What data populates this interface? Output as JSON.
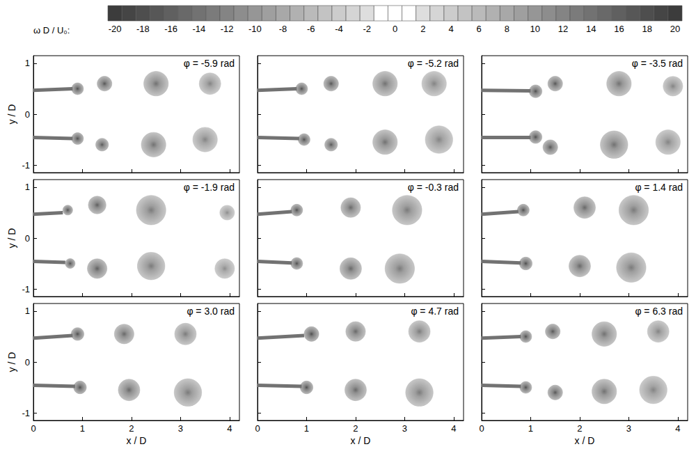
{
  "colorbar": {
    "label": "ω D / U₀:",
    "range": [
      -20.5,
      20.5
    ],
    "ticks": [
      -20,
      -18,
      -16,
      -14,
      -12,
      -10,
      -8,
      -6,
      -4,
      -2,
      0,
      2,
      4,
      6,
      8,
      10,
      12,
      14,
      16,
      18,
      20
    ]
  },
  "chart_data": [
    {
      "type": "scatter",
      "title": "φ = -5.9 rad",
      "xlim": [
        0,
        4.2
      ],
      "ylim": [
        -1.15,
        1.15
      ],
      "xticks": [
        0,
        1,
        2,
        3,
        4
      ],
      "yticks": [
        -1,
        0,
        1
      ],
      "tick_labels": "y",
      "ylabel": "y / D",
      "series": [
        {
          "type": "line",
          "x": [
            0,
            0.8
          ],
          "y": [
            0.47,
            0.5
          ],
          "vorticity": -14
        },
        {
          "type": "line",
          "x": [
            0,
            0.8
          ],
          "y": [
            -0.46,
            -0.48
          ],
          "vorticity": 14
        },
        {
          "type": "scatter",
          "x": [
            0.9,
            1.45,
            2.5,
            3.6,
            0.9,
            1.4,
            2.45,
            3.5
          ],
          "y": [
            0.5,
            0.6,
            0.6,
            0.6,
            -0.48,
            -0.6,
            -0.6,
            -0.5
          ],
          "size": [
            0.12,
            0.15,
            0.25,
            0.22,
            0.12,
            0.13,
            0.25,
            0.25
          ],
          "vorticity": [
            -18,
            -17,
            -14,
            -12,
            18,
            17,
            14,
            12
          ]
        }
      ]
    },
    {
      "type": "scatter",
      "title": "φ = -5.2 rad",
      "xlim": [
        0,
        4.2
      ],
      "ylim": [
        -1.15,
        1.15
      ],
      "xticks": [
        0,
        1,
        2,
        3,
        4
      ],
      "yticks": [
        -1,
        0,
        1
      ],
      "tick_labels": false,
      "series": [
        {
          "type": "line",
          "x": [
            0,
            0.8
          ],
          "y": [
            0.47,
            0.5
          ],
          "vorticity": -14
        },
        {
          "type": "line",
          "x": [
            0,
            0.85
          ],
          "y": [
            -0.46,
            -0.48
          ],
          "vorticity": 14
        },
        {
          "type": "scatter",
          "x": [
            0.9,
            1.5,
            2.6,
            3.6,
            0.95,
            1.5,
            2.6,
            3.7
          ],
          "y": [
            0.5,
            0.6,
            0.6,
            0.6,
            -0.5,
            -0.6,
            -0.55,
            -0.5
          ],
          "size": [
            0.12,
            0.15,
            0.25,
            0.25,
            0.12,
            0.13,
            0.25,
            0.28
          ],
          "vorticity": [
            -18,
            -17,
            -14,
            -12,
            18,
            17,
            14,
            12
          ]
        }
      ]
    },
    {
      "type": "scatter",
      "title": "φ = -3.5 rad",
      "xlim": [
        0,
        4.2
      ],
      "ylim": [
        -1.15,
        1.15
      ],
      "xticks": [
        0,
        1,
        2,
        3,
        4
      ],
      "yticks": [
        -1,
        0,
        1
      ],
      "tick_labels": false,
      "series": [
        {
          "type": "line",
          "x": [
            0,
            1.0
          ],
          "y": [
            0.47,
            0.46
          ],
          "vorticity": -14
        },
        {
          "type": "line",
          "x": [
            0,
            1.0
          ],
          "y": [
            -0.46,
            -0.46
          ],
          "vorticity": 14
        },
        {
          "type": "scatter",
          "x": [
            1.1,
            1.5,
            2.8,
            3.9,
            1.1,
            1.4,
            2.7,
            3.8
          ],
          "y": [
            0.45,
            0.6,
            0.6,
            0.55,
            -0.45,
            -0.65,
            -0.6,
            -0.55
          ],
          "size": [
            0.13,
            0.15,
            0.25,
            0.2,
            0.13,
            0.15,
            0.28,
            0.25
          ],
          "vorticity": [
            -18,
            -17,
            -14,
            -12,
            18,
            17,
            14,
            12
          ]
        }
      ]
    },
    {
      "type": "scatter",
      "title": "φ = -1.9 rad",
      "xlim": [
        0,
        4.2
      ],
      "ylim": [
        -1.15,
        1.15
      ],
      "xticks": [
        0,
        1,
        2,
        3,
        4
      ],
      "yticks": [
        -1,
        0,
        1
      ],
      "tick_labels": "y",
      "ylabel": "y / D",
      "series": [
        {
          "type": "line",
          "x": [
            0,
            0.6
          ],
          "y": [
            0.47,
            0.5
          ],
          "vorticity": -14
        },
        {
          "type": "line",
          "x": [
            0,
            0.65
          ],
          "y": [
            -0.46,
            -0.48
          ],
          "vorticity": 14
        },
        {
          "type": "scatter",
          "x": [
            0.7,
            1.3,
            2.4,
            3.95,
            0.75,
            1.3,
            2.4,
            3.9
          ],
          "y": [
            0.55,
            0.65,
            0.55,
            0.5,
            -0.5,
            -0.6,
            -0.55,
            -0.6
          ],
          "size": [
            0.1,
            0.18,
            0.3,
            0.15,
            0.1,
            0.2,
            0.28,
            0.2
          ],
          "vorticity": [
            -18,
            -16,
            -13,
            -11,
            18,
            16,
            13,
            11
          ]
        }
      ]
    },
    {
      "type": "scatter",
      "title": "φ = -0.3 rad",
      "xlim": [
        0,
        4.2
      ],
      "ylim": [
        -1.15,
        1.15
      ],
      "xticks": [
        0,
        1,
        2,
        3,
        4
      ],
      "yticks": [
        -1,
        0,
        1
      ],
      "tick_labels": false,
      "series": [
        {
          "type": "line",
          "x": [
            0,
            0.7
          ],
          "y": [
            0.47,
            0.52
          ],
          "vorticity": -14
        },
        {
          "type": "line",
          "x": [
            0,
            0.7
          ],
          "y": [
            -0.46,
            -0.49
          ],
          "vorticity": 14
        },
        {
          "type": "scatter",
          "x": [
            0.8,
            1.9,
            3.05,
            0.8,
            1.9,
            2.9
          ],
          "y": [
            0.55,
            0.6,
            0.55,
            -0.5,
            -0.6,
            -0.6
          ],
          "size": [
            0.12,
            0.2,
            0.3,
            0.12,
            0.22,
            0.3
          ],
          "vorticity": [
            -18,
            -15,
            -13,
            18,
            15,
            13
          ]
        }
      ]
    },
    {
      "type": "scatter",
      "title": "φ = 1.4 rad",
      "xlim": [
        0,
        4.2
      ],
      "ylim": [
        -1.15,
        1.15
      ],
      "xticks": [
        0,
        1,
        2,
        3,
        4
      ],
      "yticks": [
        -1,
        0,
        1
      ],
      "tick_labels": false,
      "series": [
        {
          "type": "line",
          "x": [
            0,
            0.75
          ],
          "y": [
            0.47,
            0.52
          ],
          "vorticity": -14
        },
        {
          "type": "line",
          "x": [
            0,
            0.8
          ],
          "y": [
            -0.46,
            -0.49
          ],
          "vorticity": 14
        },
        {
          "type": "scatter",
          "x": [
            0.85,
            2.1,
            3.1,
            0.9,
            2.0,
            3.05
          ],
          "y": [
            0.55,
            0.6,
            0.55,
            -0.5,
            -0.55,
            -0.58
          ],
          "size": [
            0.12,
            0.22,
            0.3,
            0.13,
            0.22,
            0.3
          ],
          "vorticity": [
            -18,
            -15,
            -13,
            18,
            15,
            13
          ]
        }
      ]
    },
    {
      "type": "scatter",
      "title": "φ = 3.0 rad",
      "xlim": [
        0,
        4.2
      ],
      "ylim": [
        -1.15,
        1.15
      ],
      "xticks": [
        0,
        1,
        2,
        3,
        4
      ],
      "yticks": [
        -1,
        0,
        1
      ],
      "xlabel": "x / D",
      "ylabel": "y / D",
      "series": [
        {
          "type": "line",
          "x": [
            0,
            0.8
          ],
          "y": [
            0.47,
            0.52
          ],
          "vorticity": -14
        },
        {
          "type": "line",
          "x": [
            0,
            0.85
          ],
          "y": [
            -0.46,
            -0.48
          ],
          "vorticity": 14
        },
        {
          "type": "scatter",
          "x": [
            0.9,
            1.85,
            3.1,
            0.95,
            1.95,
            3.15
          ],
          "y": [
            0.55,
            0.55,
            0.55,
            -0.5,
            -0.55,
            -0.6
          ],
          "size": [
            0.13,
            0.2,
            0.22,
            0.13,
            0.22,
            0.28
          ],
          "vorticity": [
            -18,
            -15,
            -13,
            18,
            15,
            13
          ]
        }
      ]
    },
    {
      "type": "scatter",
      "title": "φ = 4.7 rad",
      "xlim": [
        0,
        4.2
      ],
      "ylim": [
        -1.15,
        1.15
      ],
      "xticks": [
        0,
        1,
        2,
        3,
        4
      ],
      "yticks": [
        -1,
        0,
        1
      ],
      "tick_labels": "x",
      "xlabel": "x / D",
      "series": [
        {
          "type": "line",
          "x": [
            0,
            0.95
          ],
          "y": [
            0.47,
            0.52
          ],
          "vorticity": -14
        },
        {
          "type": "line",
          "x": [
            0,
            0.9
          ],
          "y": [
            -0.46,
            -0.48
          ],
          "vorticity": 14
        },
        {
          "type": "scatter",
          "x": [
            1.1,
            2.0,
            3.3,
            1.0,
            2.0,
            3.3
          ],
          "y": [
            0.55,
            0.6,
            0.6,
            -0.5,
            -0.55,
            -0.6
          ],
          "size": [
            0.15,
            0.2,
            0.22,
            0.13,
            0.22,
            0.28
          ],
          "vorticity": [
            -18,
            -15,
            -13,
            18,
            15,
            13
          ]
        }
      ]
    },
    {
      "type": "scatter",
      "title": "φ = 6.3 rad",
      "xlim": [
        0,
        4.2
      ],
      "ylim": [
        -1.15,
        1.15
      ],
      "xticks": [
        0,
        1,
        2,
        3,
        4
      ],
      "yticks": [
        -1,
        0,
        1
      ],
      "tick_labels": "x",
      "xlabel": "x / D",
      "series": [
        {
          "type": "line",
          "x": [
            0,
            0.8
          ],
          "y": [
            0.47,
            0.5
          ],
          "vorticity": -14
        },
        {
          "type": "line",
          "x": [
            0,
            0.8
          ],
          "y": [
            -0.46,
            -0.48
          ],
          "vorticity": 14
        },
        {
          "type": "scatter",
          "x": [
            0.9,
            1.45,
            2.5,
            3.6,
            0.9,
            1.5,
            2.5,
            3.5
          ],
          "y": [
            0.5,
            0.6,
            0.55,
            0.6,
            -0.5,
            -0.6,
            -0.58,
            -0.55
          ],
          "size": [
            0.12,
            0.15,
            0.25,
            0.22,
            0.12,
            0.15,
            0.25,
            0.28
          ],
          "vorticity": [
            -18,
            -17,
            -14,
            -12,
            18,
            17,
            14,
            12
          ]
        }
      ]
    }
  ]
}
